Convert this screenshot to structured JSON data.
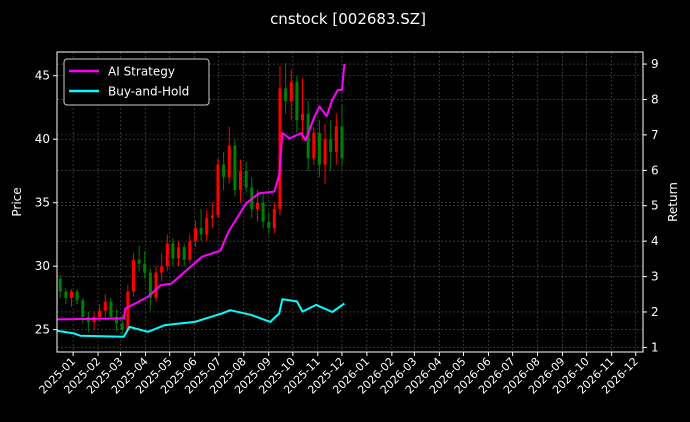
{
  "chart_data": {
    "type": "line",
    "title": "cnstock [002683.SZ]",
    "ylabel": "Price",
    "y2label": "Return",
    "xlim": [
      "2024-12-12",
      "2026-12-10"
    ],
    "ylim": [
      23.24,
      46.87
    ],
    "y2lim": [
      0.87,
      9.34
    ],
    "grid": true,
    "legend_position": "top-left",
    "x_ticks": [
      "2025-01",
      "2025-02",
      "2025-03",
      "2025-04",
      "2025-05",
      "2025-06",
      "2025-07",
      "2025-08",
      "2025-09",
      "2025-10",
      "2025-11",
      "2025-12",
      "2026-01",
      "2026-02",
      "2026-03",
      "2026-04",
      "2026-05",
      "2026-06",
      "2026-07",
      "2026-08",
      "2026-09",
      "2026-10",
      "2026-11",
      "2026-12"
    ],
    "y_ticks": [
      25,
      30,
      35,
      40,
      45
    ],
    "y2_ticks": [
      1,
      2,
      3,
      4,
      5,
      6,
      7,
      8,
      9
    ],
    "colors": {
      "up": "#ff0000",
      "down": "#008000",
      "ai": "#ff00ff",
      "bh": "#00ffff",
      "grid": "#555555"
    },
    "candles_columns": [
      "date",
      "open",
      "high",
      "low",
      "close"
    ],
    "candles": [
      [
        "2024-12-16",
        29.0,
        29.3,
        27.5,
        28.0
      ],
      [
        "2024-12-23",
        28.0,
        28.3,
        27.0,
        27.5
      ],
      [
        "2024-12-30",
        27.5,
        28.2,
        26.8,
        28.0
      ],
      [
        "2025-01-06",
        28.0,
        28.2,
        27.0,
        27.3
      ],
      [
        "2025-01-13",
        27.3,
        27.5,
        25.5,
        26.0
      ],
      [
        "2025-01-20",
        26.0,
        26.4,
        24.8,
        25.6
      ],
      [
        "2025-01-27",
        25.6,
        26.4,
        25.0,
        26.0
      ],
      [
        "2025-02-03",
        26.0,
        27.0,
        25.6,
        26.5
      ],
      [
        "2025-02-10",
        26.5,
        27.8,
        26.0,
        27.2
      ],
      [
        "2025-02-17",
        27.2,
        27.5,
        25.8,
        26.0
      ],
      [
        "2025-02-24",
        26.0,
        26.6,
        24.9,
        25.5
      ],
      [
        "2025-03-03",
        25.5,
        26.2,
        24.6,
        25.0
      ],
      [
        "2025-03-10",
        25.0,
        28.5,
        24.8,
        28.0
      ],
      [
        "2025-03-17",
        28.0,
        31.0,
        27.6,
        30.5
      ],
      [
        "2025-03-24",
        30.5,
        31.6,
        29.6,
        30.2
      ],
      [
        "2025-03-31",
        30.2,
        31.2,
        29.0,
        29.5
      ],
      [
        "2025-04-07",
        29.5,
        29.8,
        26.5,
        27.5
      ],
      [
        "2025-04-14",
        27.5,
        30.0,
        27.2,
        29.5
      ],
      [
        "2025-04-21",
        29.5,
        31.0,
        28.8,
        30.0
      ],
      [
        "2025-04-28",
        30.0,
        32.5,
        29.6,
        31.8
      ],
      [
        "2025-05-05",
        31.8,
        32.2,
        30.0,
        30.6
      ],
      [
        "2025-05-12",
        30.6,
        32.0,
        30.0,
        31.5
      ],
      [
        "2025-05-19",
        31.5,
        31.8,
        30.0,
        30.5
      ],
      [
        "2025-05-26",
        30.5,
        32.5,
        30.2,
        32.0
      ],
      [
        "2025-06-02",
        32.0,
        33.6,
        31.5,
        33.0
      ],
      [
        "2025-06-09",
        33.0,
        34.5,
        32.0,
        32.5
      ],
      [
        "2025-06-16",
        32.5,
        34.4,
        32.0,
        33.8
      ],
      [
        "2025-06-23",
        33.8,
        35.0,
        33.0,
        34.0
      ],
      [
        "2025-06-30",
        34.0,
        38.5,
        33.8,
        38.0
      ],
      [
        "2025-07-07",
        38.0,
        39.0,
        36.0,
        37.0
      ],
      [
        "2025-07-14",
        37.0,
        41.0,
        36.5,
        39.5
      ],
      [
        "2025-07-21",
        39.5,
        40.0,
        35.5,
        36.0
      ],
      [
        "2025-07-28",
        36.0,
        38.4,
        35.0,
        37.5
      ],
      [
        "2025-08-04",
        37.5,
        38.2,
        35.8,
        36.2
      ],
      [
        "2025-08-11",
        36.2,
        37.0,
        33.8,
        34.5
      ],
      [
        "2025-08-18",
        34.5,
        36.0,
        33.5,
        35.0
      ],
      [
        "2025-08-25",
        35.0,
        35.8,
        33.0,
        33.5
      ],
      [
        "2025-09-01",
        33.5,
        34.2,
        32.5,
        33.0
      ],
      [
        "2025-09-08",
        33.0,
        35.0,
        32.6,
        34.5
      ],
      [
        "2025-09-15",
        34.5,
        45.8,
        34.0,
        44.0
      ],
      [
        "2025-09-22",
        44.0,
        46.0,
        42.0,
        43.0
      ],
      [
        "2025-09-29",
        43.0,
        45.5,
        41.5,
        44.5
      ],
      [
        "2025-10-06",
        44.5,
        45.0,
        40.5,
        41.5
      ],
      [
        "2025-10-13",
        41.5,
        44.8,
        40.0,
        42.0
      ],
      [
        "2025-10-20",
        42.0,
        43.0,
        37.5,
        38.5
      ],
      [
        "2025-10-27",
        38.5,
        41.0,
        38.0,
        40.5
      ],
      [
        "2025-11-03",
        40.5,
        41.5,
        37.0,
        38.0
      ],
      [
        "2025-11-10",
        38.0,
        41.2,
        36.5,
        40.0
      ],
      [
        "2025-11-17",
        40.0,
        41.5,
        37.5,
        39.0
      ],
      [
        "2025-11-24",
        39.0,
        42.0,
        38.0,
        41.0
      ],
      [
        "2025-12-01",
        41.0,
        42.8,
        37.8,
        38.5
      ]
    ],
    "series": [
      {
        "name": "AI Strategy",
        "axis": "right",
        "points": [
          [
            "2024-12-12",
            1.79
          ],
          [
            "2025-03-05",
            1.82
          ],
          [
            "2025-03-07",
            2.1
          ],
          [
            "2025-03-20",
            2.25
          ],
          [
            "2025-04-04",
            2.43
          ],
          [
            "2025-04-20",
            2.76
          ],
          [
            "2025-05-03",
            2.8
          ],
          [
            "2025-05-20",
            3.14
          ],
          [
            "2025-06-10",
            3.56
          ],
          [
            "2025-07-03",
            3.73
          ],
          [
            "2025-07-13",
            4.27
          ],
          [
            "2025-08-04",
            5.07
          ],
          [
            "2025-08-20",
            5.35
          ],
          [
            "2025-09-08",
            5.4
          ],
          [
            "2025-09-14",
            5.87
          ],
          [
            "2025-09-18",
            7.05
          ],
          [
            "2025-09-27",
            6.9
          ],
          [
            "2025-10-11",
            7.05
          ],
          [
            "2025-10-17",
            6.85
          ],
          [
            "2025-10-27",
            7.47
          ],
          [
            "2025-11-03",
            7.8
          ],
          [
            "2025-11-12",
            7.53
          ],
          [
            "2025-11-19",
            8.0
          ],
          [
            "2025-11-26",
            8.27
          ],
          [
            "2025-12-01",
            8.27
          ],
          [
            "2025-12-04",
            9.0
          ]
        ]
      },
      {
        "name": "Buy-and-Hold",
        "axis": "right",
        "points": [
          [
            "2024-12-12",
            1.47
          ],
          [
            "2025-01-01",
            1.4
          ],
          [
            "2025-01-10",
            1.33
          ],
          [
            "2025-03-05",
            1.3
          ],
          [
            "2025-03-12",
            1.58
          ],
          [
            "2025-04-04",
            1.44
          ],
          [
            "2025-04-25",
            1.63
          ],
          [
            "2025-06-01",
            1.72
          ],
          [
            "2025-07-05",
            1.96
          ],
          [
            "2025-07-15",
            2.05
          ],
          [
            "2025-08-10",
            1.92
          ],
          [
            "2025-09-03",
            1.72
          ],
          [
            "2025-09-14",
            1.96
          ],
          [
            "2025-09-18",
            2.36
          ],
          [
            "2025-10-06",
            2.3
          ],
          [
            "2025-10-13",
            2.01
          ],
          [
            "2025-10-30",
            2.2
          ],
          [
            "2025-11-19",
            2.0
          ],
          [
            "2025-12-04",
            2.24
          ]
        ]
      }
    ]
  }
}
